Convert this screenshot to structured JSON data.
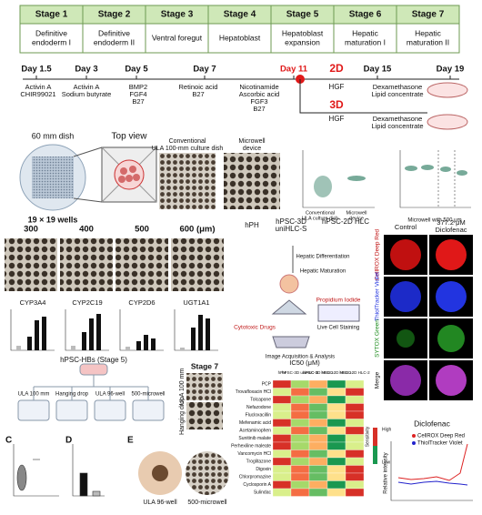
{
  "stages": [
    {
      "name": "Stage 1",
      "desc": [
        "Definitive",
        "endoderm I"
      ]
    },
    {
      "name": "Stage 2",
      "desc": [
        "Definitive",
        "endoderm II"
      ]
    },
    {
      "name": "Stage 3",
      "desc": [
        "Ventral foregut"
      ]
    },
    {
      "name": "Stage 4",
      "desc": [
        "Hepatoblast"
      ]
    },
    {
      "name": "Stage 5",
      "desc": [
        "Hepatoblast",
        "expansion"
      ]
    },
    {
      "name": "Stage 6",
      "desc": [
        "Hepatic",
        "maturation I"
      ]
    },
    {
      "name": "Stage 7",
      "desc": [
        "Hepatic",
        "maturation II"
      ]
    }
  ],
  "timeline": {
    "days": [
      "Day 1.5",
      "Day 3",
      "Day 5",
      "Day 7",
      "Day 11",
      "Day 15",
      "Day 19"
    ],
    "factors": [
      [
        "Activin A",
        "CHIR99021"
      ],
      [
        "Activin A",
        "Sodium butyrate"
      ],
      [
        "BMP2",
        "FGF4",
        "B27"
      ],
      [
        "Retinoic acid",
        "B27"
      ],
      [
        "Nicotinamide",
        "Ascorbic acid",
        "FGF3",
        "B27"
      ]
    ],
    "branch_2d": "2D",
    "branch_3d": "3D",
    "hgf_2d": "HGF",
    "hgf_3d": "HGF",
    "late_2d": [
      "Dexamethasone",
      "Lipid concentrate"
    ],
    "late_3d": [
      "Dexamethasone",
      "Lipid concentrate"
    ]
  },
  "device": {
    "dish": "60 mm dish",
    "top_view": "Top view",
    "wells": "19 × 19 wells",
    "conventional": [
      "Conventional",
      "ULA 100-mm culture dish"
    ],
    "microwell": [
      "Microwell",
      "device"
    ],
    "scatter1_x": [
      "Conventional",
      "ULA culture dish",
      "Microwell",
      "device"
    ],
    "scatter2_x": "Microwell with 500 μm"
  },
  "sizes": [
    "300",
    "400",
    "500",
    "600 (μm)"
  ],
  "genes": [
    "CYP3A4",
    "CYP2C19",
    "CYP2D6",
    "UGT1A1"
  ],
  "schematic": {
    "hph": "hPH",
    "hpsc3d": [
      "hPSC-3D",
      "uniHLC-S"
    ],
    "hpsc2d": "hPSC-2D HLC",
    "steps": [
      "Hepatic Differentiation",
      "Hepatic Maturation",
      "Cytotoxic Drugs",
      "Propidium Iodide",
      "Live Cell Staining",
      "Image Acquisition & Analysis"
    ]
  },
  "fluor": {
    "control": "Control",
    "treated": [
      "377.2 μM",
      "Diclofenac"
    ],
    "rows": [
      "CellROX Deep Red",
      "ThiolTracker Violet",
      "SYTOX Green",
      "Merge"
    ]
  },
  "formats": {
    "title": "hPSC-HBs (Stage 5)",
    "methods": [
      "ULA 100 mm",
      "Hanging drop",
      "ULA 96-well",
      "500-microwell"
    ],
    "stage7": "Stage 7",
    "stage7_rows": [
      "ULA 100 mm",
      "Hanging drop"
    ],
    "panels": [
      "C",
      "D",
      "E"
    ],
    "e_images": [
      "ULA 96-well",
      "500-microwell"
    ]
  },
  "heatmap": {
    "title": "IC50 (μM)",
    "columns": [
      "hPH",
      "hPSC-3D uniHLC-S",
      "hPSC-3D HLC-1",
      "hPSC-2D HLC-1",
      "hPSC-2D HLC-2"
    ],
    "drugs": [
      "PCP",
      "Trovafloxacin HCl",
      "Tolcapone",
      "Nefazodone",
      "Flucloxacillin",
      "Mefenamic acid",
      "Acetaminophen",
      "Sunitinib malate",
      "Perhexiline maleate",
      "Vancomycin HCl",
      "Troglitazone",
      "Digoxin",
      "Chlorpromazine",
      "Cyclosporin A",
      "Sulindac"
    ],
    "legend": [
      "Sensitivity",
      "High",
      "Low"
    ]
  },
  "diclofenac": {
    "title": "Diclofenac",
    "legend": [
      "CellROX Deep Red",
      "ThiolTracker Violet"
    ],
    "ylabel": "Relative intensity"
  }
}
